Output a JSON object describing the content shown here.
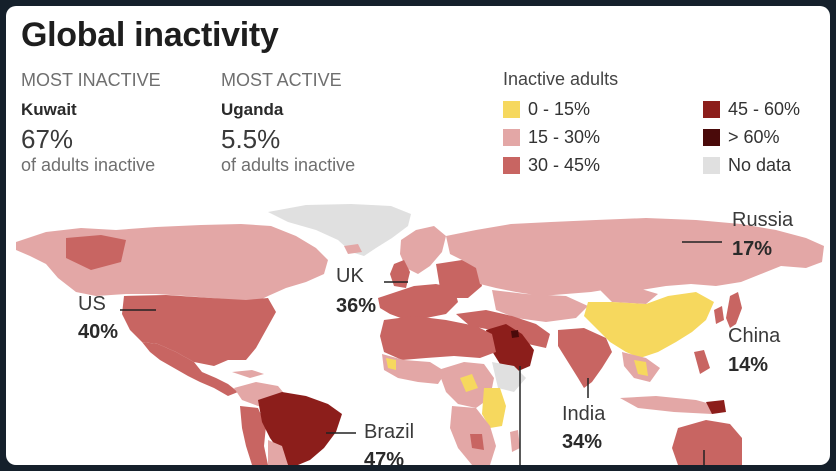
{
  "title": "Global inactivity",
  "most_inactive": {
    "caption": "MOST INACTIVE",
    "country": "Kuwait",
    "value": "67%",
    "desc": "of adults inactive"
  },
  "most_active": {
    "caption": "MOST ACTIVE",
    "country": "Uganda",
    "value": "5.5%",
    "desc": "of adults inactive"
  },
  "legend": {
    "title": "Inactive adults",
    "items": [
      {
        "label": "0 - 15%",
        "color": "#f6d85e"
      },
      {
        "label": "15 - 30%",
        "color": "#e3a7a6"
      },
      {
        "label": "30 - 45%",
        "color": "#c86562"
      },
      {
        "label": "45 - 60%",
        "color": "#8c1e1b"
      },
      {
        "label": "> 60%",
        "color": "#4a0a0a"
      },
      {
        "label": "No data",
        "color": "#e0e0e0"
      }
    ]
  },
  "callouts": [
    {
      "country": "US",
      "value": "40%"
    },
    {
      "country": "UK",
      "value": "36%"
    },
    {
      "country": "Russia",
      "value": "17%"
    },
    {
      "country": "China",
      "value": "14%"
    },
    {
      "country": "India",
      "value": "34%"
    },
    {
      "country": "Brazil",
      "value": "47%"
    }
  ]
}
